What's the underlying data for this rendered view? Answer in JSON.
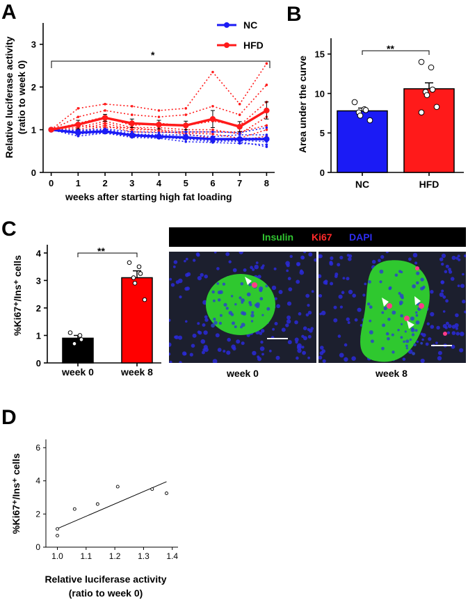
{
  "panels": {
    "A": "A",
    "B": "B",
    "C": "C",
    "D": "D"
  },
  "colors": {
    "nc": "#1b1bf5",
    "hfd": "#ff1a1a",
    "week0_bar": "#000000",
    "week8_bar": "#ff0000",
    "tissue_bg": "#1c1f2e",
    "insulin": "#31c531",
    "dapi": "#2a2ad8"
  },
  "chart_data": [
    {
      "id": "A",
      "type": "line",
      "title": "",
      "xlabel": "weeks after starting high fat loading",
      "ylabel_line1": "Relative luciferase activity",
      "ylabel_line2": "(ratio to week 0)",
      "x": [
        0,
        1,
        2,
        3,
        4,
        5,
        6,
        7,
        8
      ],
      "x_ticks": [
        "0",
        "1",
        "2",
        "3",
        "4",
        "5",
        "6",
        "7",
        "8"
      ],
      "y_ticks": [
        "0",
        "1",
        "2",
        "3"
      ],
      "xlim": [
        -0.3,
        8.3
      ],
      "ylim": [
        0,
        3.5
      ],
      "significance": "*",
      "series": [
        {
          "name": "NC",
          "mean": [
            1.0,
            0.93,
            0.96,
            0.87,
            0.84,
            0.82,
            0.78,
            0.78,
            0.78
          ],
          "sem": [
            0,
            0.05,
            0.05,
            0.05,
            0.04,
            0.04,
            0.05,
            0.04,
            0.04
          ],
          "individuals": [
            [
              1.0,
              0.99,
              1.02,
              0.95,
              0.93,
              0.95,
              0.95,
              0.93,
              1.05
            ],
            [
              1.0,
              0.95,
              1.0,
              0.9,
              0.88,
              0.88,
              0.84,
              0.88,
              0.88
            ],
            [
              1.0,
              0.92,
              0.95,
              0.88,
              0.85,
              0.82,
              0.78,
              0.8,
              0.8
            ],
            [
              1.0,
              0.9,
              0.93,
              0.85,
              0.82,
              0.78,
              0.72,
              0.75,
              0.72
            ],
            [
              1.0,
              0.85,
              0.92,
              0.82,
              0.8,
              0.72,
              0.7,
              0.68,
              0.65
            ],
            [
              1.0,
              0.98,
              0.98,
              0.84,
              0.84,
              0.8,
              0.75,
              0.72,
              0.6
            ]
          ]
        },
        {
          "name": "HFD",
          "mean": [
            1.0,
            1.12,
            1.28,
            1.15,
            1.12,
            1.1,
            1.25,
            1.07,
            1.45
          ],
          "sem": [
            0,
            0.1,
            0.08,
            0.1,
            0.1,
            0.1,
            0.2,
            0.12,
            0.2
          ],
          "individuals": [
            [
              1.0,
              1.5,
              1.6,
              1.55,
              1.45,
              1.5,
              2.35,
              1.6,
              2.55
            ],
            [
              1.0,
              1.3,
              1.45,
              1.35,
              1.3,
              1.35,
              1.55,
              1.35,
              2.05
            ],
            [
              1.0,
              1.15,
              1.3,
              1.1,
              1.15,
              1.1,
              1.2,
              1.1,
              1.65
            ],
            [
              1.0,
              1.05,
              1.2,
              1.05,
              1.05,
              1.0,
              1.0,
              0.9,
              1.3
            ],
            [
              1.0,
              1.0,
              1.15,
              1.0,
              1.0,
              0.95,
              0.95,
              0.95,
              1.1
            ],
            [
              1.0,
              0.95,
              1.1,
              0.95,
              0.95,
              0.92,
              0.9,
              0.8,
              1.0
            ],
            [
              1.0,
              1.1,
              1.05,
              1.05,
              0.98,
              0.9,
              0.8,
              0.75,
              0.85
            ]
          ]
        }
      ],
      "legend": [
        "NC",
        "HFD"
      ],
      "legend_position": "top-right"
    },
    {
      "id": "B",
      "type": "bar",
      "categories": [
        "NC",
        "HFD"
      ],
      "values": [
        7.8,
        10.6
      ],
      "sem": [
        0.35,
        0.75
      ],
      "points": [
        [
          8.9,
          8.0,
          7.9,
          7.6,
          7.2,
          6.6
        ],
        [
          14.0,
          13.3,
          10.5,
          10.2,
          9.8,
          8.3,
          7.6
        ]
      ],
      "ylabel": "Area under the curve",
      "y_ticks": [
        "0",
        "5",
        "10",
        "15"
      ],
      "ylim": [
        0,
        17
      ],
      "significance": "**"
    },
    {
      "id": "C",
      "type": "bar",
      "categories": [
        "week 0",
        "week 8"
      ],
      "values": [
        0.9,
        3.1
      ],
      "sem": [
        0.1,
        0.25
      ],
      "points": [
        [
          1.1,
          1.0,
          0.85,
          0.7
        ],
        [
          3.65,
          3.5,
          3.25,
          3.1,
          2.9,
          2.3
        ]
      ],
      "ylabel": "%Ki67⁺/Ins⁺ cells",
      "y_ticks": [
        "0",
        "1",
        "2",
        "3",
        "4"
      ],
      "ylim": [
        0,
        4.3
      ],
      "significance": "**"
    },
    {
      "id": "D",
      "type": "scatter",
      "x": [
        1.0,
        1.0,
        1.06,
        1.14,
        1.21,
        1.33,
        1.38
      ],
      "y": [
        1.1,
        0.7,
        2.3,
        2.6,
        3.65,
        3.5,
        3.25
      ],
      "fit_line": {
        "x": [
          1.0,
          1.38
        ],
        "y": [
          1.12,
          3.95
        ]
      },
      "xlabel_line1": "Relative luciferase activity",
      "xlabel_line2": "(ratio to week 0)",
      "ylabel": "%Ki67⁺/Ins⁺ cells",
      "x_ticks": [
        "1.0",
        "1.1",
        "1.2",
        "1.3",
        "1.4"
      ],
      "y_ticks": [
        "0",
        "2",
        "4",
        "6"
      ],
      "xlim": [
        0.96,
        1.42
      ],
      "ylim": [
        0,
        6.5
      ]
    }
  ],
  "micrograph": {
    "legend": {
      "insulin": "Insulin",
      "ki67": "Ki67",
      "dapi": "DAPI"
    },
    "captions": [
      "week 0",
      "week 8"
    ]
  }
}
